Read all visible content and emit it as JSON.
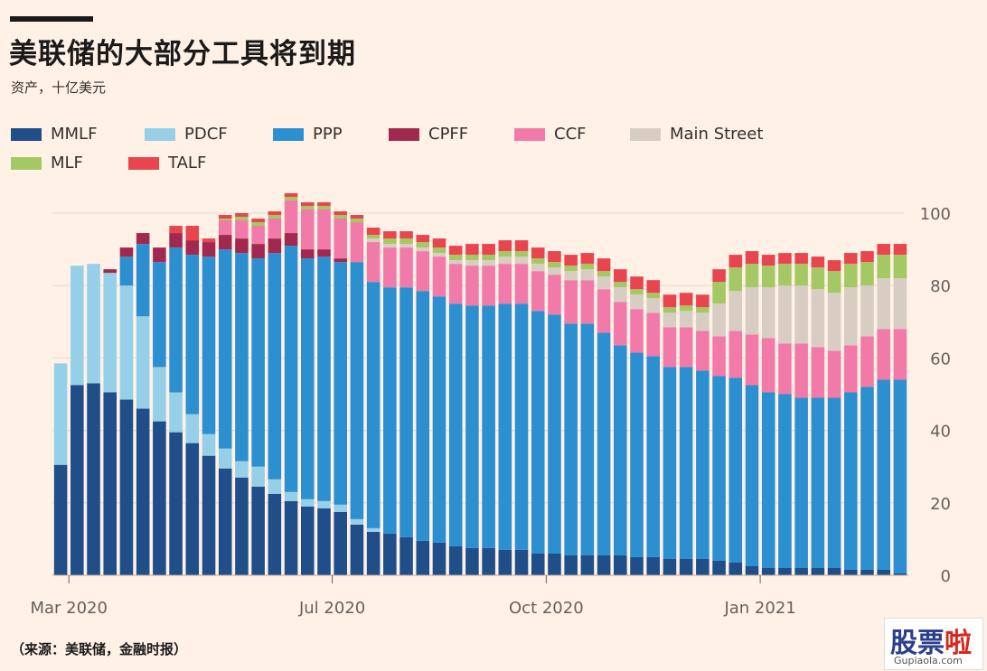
{
  "title": "美联储的大部分工具将到期",
  "subtitle": "资产，十亿美元",
  "source": "（来源：美联储，金融时报）",
  "watermark": {
    "logo_a": "股票",
    "logo_b": "啦",
    "site": "Gupiaola.com"
  },
  "chart_data": {
    "type": "bar",
    "stacked": true,
    "title": "美联储的大部分工具将到期",
    "ylabel": "资产，十亿美元",
    "ylim": [
      0,
      100
    ],
    "yticks": [
      0,
      20,
      40,
      60,
      80,
      100
    ],
    "xtick_labels": [
      {
        "label": "Mar 2020",
        "bar_index": 1
      },
      {
        "label": "Jul 2020",
        "bar_index": 17
      },
      {
        "label": "Oct 2020",
        "bar_index": 30
      },
      {
        "label": "Jan 2021",
        "bar_index": 43
      }
    ],
    "legend": [
      {
        "name": "MMLF",
        "color": "#1f4e89"
      },
      {
        "name": "PDCF",
        "color": "#96d0e8"
      },
      {
        "name": "PPP",
        "color": "#2b8fd0"
      },
      {
        "name": "CPFF",
        "color": "#a3284f"
      },
      {
        "name": "CCF",
        "color": "#f27aa8"
      },
      {
        "name": "Main Street",
        "color": "#d8cdc3"
      },
      {
        "name": "MLF",
        "color": "#a4c964"
      },
      {
        "name": "TALF",
        "color": "#e8454f"
      }
    ],
    "series": [
      {
        "name": "MMLF",
        "values": [
          30.5,
          52.5,
          53,
          50.5,
          48.5,
          46,
          42.5,
          39.5,
          36.5,
          33,
          29.5,
          27,
          24.5,
          22.5,
          20.5,
          19,
          18.5,
          17.5,
          14,
          12,
          11.5,
          10.5,
          9.5,
          9,
          8,
          7.5,
          7.5,
          7,
          7,
          6,
          6,
          5.5,
          5.5,
          5.5,
          5.5,
          5,
          5,
          4.5,
          4.5,
          4.5,
          4,
          3.5,
          2.5,
          2,
          2,
          2,
          2,
          2,
          1.5,
          1.5,
          1.5,
          0.5
        ]
      },
      {
        "name": "PDCF",
        "values": [
          28,
          33,
          33,
          33,
          31.5,
          25.5,
          15,
          11,
          8,
          6,
          5.5,
          4.5,
          5.5,
          4,
          2.5,
          2,
          2,
          2,
          1.5,
          1,
          0,
          0,
          0,
          0,
          0,
          0,
          0,
          0,
          0,
          0,
          0,
          0,
          0,
          0,
          0,
          0,
          0,
          0,
          0,
          0,
          0,
          0,
          0,
          0,
          0,
          0,
          0,
          0,
          0,
          0,
          0,
          0
        ]
      },
      {
        "name": "PPP",
        "values": [
          0,
          0,
          0,
          0,
          8,
          20,
          29,
          40,
          44,
          49,
          55,
          57.5,
          57.5,
          62.5,
          68,
          66.5,
          67.5,
          67,
          71,
          68,
          68,
          69,
          69,
          68,
          67,
          67,
          67,
          68,
          68,
          67,
          66,
          64,
          64,
          61.5,
          58,
          56.5,
          55.5,
          53,
          53,
          52,
          51,
          51,
          50,
          48.5,
          48,
          47,
          47,
          47,
          49,
          50.5,
          52.5,
          53.5
        ]
      },
      {
        "name": "CPFF",
        "values": [
          0,
          0,
          0,
          1,
          2.5,
          3,
          4,
          4,
          4,
          4,
          4,
          4,
          4,
          4,
          3.5,
          2.5,
          2,
          1,
          0,
          0,
          0,
          0,
          0,
          0,
          0,
          0,
          0,
          0,
          0,
          0,
          0,
          0,
          0,
          0,
          0,
          0,
          0,
          0,
          0,
          0,
          0,
          0,
          0,
          0,
          0,
          0,
          0,
          0,
          0,
          0,
          0,
          0
        ]
      },
      {
        "name": "CCF",
        "values": [
          0,
          0,
          0,
          0,
          0,
          0,
          0,
          0,
          0,
          0,
          4,
          5,
          5,
          5.5,
          9,
          11,
          11,
          11,
          11,
          11,
          11,
          11,
          11,
          11,
          11,
          11,
          11,
          11,
          11,
          11,
          11,
          12,
          12,
          12,
          12,
          12,
          12,
          11,
          11,
          11,
          11,
          13,
          14,
          15,
          14,
          15,
          14,
          13,
          13,
          14,
          14,
          14
        ]
      },
      {
        "name": "Main Street",
        "values": [
          0,
          0,
          0,
          0,
          0,
          0,
          0,
          0,
          0,
          0,
          0,
          0,
          0,
          0,
          0,
          0,
          0,
          0,
          0,
          1,
          1,
          1,
          1,
          1,
          1,
          1.5,
          1.5,
          2,
          2,
          2,
          2,
          2.5,
          3,
          3.5,
          4,
          4,
          4,
          4,
          4.5,
          5,
          9,
          11,
          13,
          14,
          16,
          16,
          16,
          16,
          16,
          14,
          14,
          14
        ]
      },
      {
        "name": "MLF",
        "values": [
          0,
          0,
          0,
          0,
          0,
          0,
          0,
          0,
          0,
          0,
          0.5,
          1,
          1,
          1,
          1,
          1,
          1,
          1,
          1,
          1,
          1.5,
          1.5,
          1.5,
          1.5,
          1.5,
          1.5,
          1.5,
          1.5,
          1.5,
          1.5,
          1.5,
          1.5,
          1.5,
          1.5,
          1.5,
          1.5,
          1.5,
          1.5,
          1.5,
          1.5,
          6,
          6.5,
          6.5,
          6,
          6,
          6,
          6,
          6,
          6.5,
          6.5,
          6.5,
          6.5
        ]
      },
      {
        "name": "TALF",
        "values": [
          0,
          0,
          0,
          0,
          0,
          0,
          0,
          2,
          4,
          1,
          1,
          1,
          1,
          1,
          1,
          1,
          1,
          1,
          1,
          2,
          2,
          2,
          2,
          2.5,
          2.5,
          3,
          3,
          3,
          3,
          3,
          3,
          3,
          3,
          3.5,
          3.5,
          3.5,
          3.5,
          3.5,
          3.5,
          3.5,
          3.5,
          3.5,
          3.5,
          3,
          3,
          3,
          3,
          3,
          3,
          3,
          3,
          3
        ]
      }
    ]
  }
}
